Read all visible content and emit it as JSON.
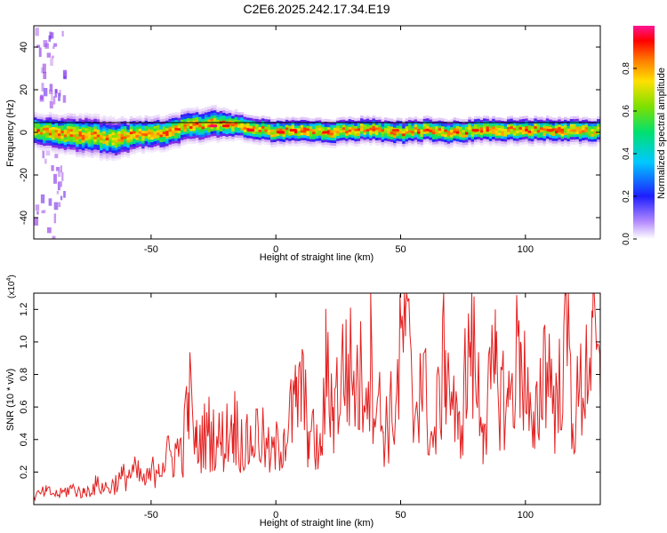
{
  "title": "C2E6.2025.242.17.34.E19",
  "colors": {
    "snr_line": "#e32020",
    "frame": "#000000",
    "zero_line": "#000000",
    "colormap": [
      "#ffffff",
      "#8a2be2",
      "#1e1eff",
      "#00c8ff",
      "#00e070",
      "#7de000",
      "#ffe000",
      "#ff7a00",
      "#ff0000",
      "#ff1493"
    ]
  },
  "chart_data": [
    {
      "id": "spectrogram",
      "type": "heatmap",
      "title": "C2E6.2025.242.17.34.E19",
      "xlabel": "Height of straight line (km)",
      "ylabel": "Frequency (Hz)",
      "xlim": [
        -97,
        130
      ],
      "ylim": [
        -50,
        50
      ],
      "xticks": [
        -50,
        0,
        50,
        100
      ],
      "yticks": [
        -40,
        -20,
        0,
        20,
        40
      ],
      "colorbar": {
        "label": "Normalized spectral amplitude",
        "range": [
          0,
          1
        ],
        "ticks": [
          "0.0",
          "0.2",
          "0.4",
          "0.6",
          "0.8"
        ],
        "tick_values": [
          0.0,
          0.2,
          0.4,
          0.6,
          0.8
        ]
      },
      "ridge": {
        "x": [
          -95,
          -80,
          -65,
          -55,
          -45,
          -35,
          -25,
          -15,
          -5,
          0,
          10,
          20,
          30,
          40,
          50,
          60,
          70,
          80,
          90,
          100,
          110,
          120,
          130
        ],
        "freq": [
          1,
          -1,
          -3,
          -1,
          0,
          3,
          4,
          3,
          1,
          0,
          1,
          0,
          1,
          1,
          0,
          1,
          0,
          1,
          1,
          1,
          1,
          1,
          1
        ],
        "width": [
          5,
          6,
          6,
          5,
          5,
          5,
          5,
          4,
          4,
          4,
          4,
          4,
          4,
          4,
          4,
          4,
          4,
          4,
          4,
          4,
          4,
          4,
          4
        ]
      },
      "peak_patches": [
        {
          "x": -25,
          "freq": 3,
          "value": 0.95
        },
        {
          "x": -20,
          "freq": 3,
          "value": 0.9
        },
        {
          "x": -10,
          "freq": 1,
          "value": 0.92
        },
        {
          "x": 2,
          "freq": 0,
          "value": 0.9
        },
        {
          "x": 7,
          "freq": 1,
          "value": 0.88
        },
        {
          "x": 20,
          "freq": 0,
          "value": 0.9
        },
        {
          "x": 48,
          "freq": 1,
          "value": 0.85
        },
        {
          "x": 80,
          "freq": 1,
          "value": 0.87
        },
        {
          "x": 110,
          "freq": 1,
          "value": 0.85
        }
      ],
      "noise_region": {
        "x": [
          -97,
          -85
        ],
        "freq": [
          -50,
          50
        ],
        "value": 0.1
      }
    },
    {
      "id": "snr",
      "type": "line",
      "xlabel": "Height of straight line (km)",
      "ylabel": "SNR (10 * v/v)",
      "yscale_label": "(x10",
      "yscale_exponent": "4",
      "yscale_suffix": ")",
      "xlim": [
        -97,
        130
      ],
      "ylim": [
        0,
        1.3
      ],
      "xticks": [
        -50,
        0,
        50,
        100
      ],
      "yticks": [
        0.2,
        0.4,
        0.6,
        0.8,
        1.0,
        1.2
      ],
      "series": [
        {
          "x": [
            -97,
            -92,
            -87,
            -82,
            -77,
            -72,
            -67,
            -62,
            -57,
            -52,
            -47,
            -42,
            -37,
            -35,
            -32,
            -27,
            -22,
            -17,
            -12,
            -7,
            -2,
            3,
            8,
            10,
            13,
            18,
            20,
            23,
            28,
            33,
            38,
            43,
            48,
            52,
            55,
            58,
            63,
            68,
            73,
            78,
            83,
            88,
            93,
            98,
            103,
            108,
            113,
            116,
            119,
            124,
            127,
            130
          ],
          "values": [
            0.05,
            0.08,
            0.06,
            0.1,
            0.07,
            0.12,
            0.1,
            0.16,
            0.2,
            0.14,
            0.25,
            0.3,
            0.35,
            0.69,
            0.35,
            0.45,
            0.38,
            0.5,
            0.35,
            0.45,
            0.28,
            0.42,
            0.6,
            0.74,
            0.45,
            0.3,
            0.8,
            0.6,
            0.87,
            0.72,
            0.9,
            0.45,
            0.6,
            1.2,
            0.5,
            0.85,
            0.35,
            0.95,
            0.4,
            1.0,
            0.5,
            0.8,
            0.6,
            1.0,
            0.35,
            0.95,
            0.55,
            1.29,
            0.5,
            0.8,
            1.15,
            0.66
          ]
        }
      ]
    }
  ]
}
